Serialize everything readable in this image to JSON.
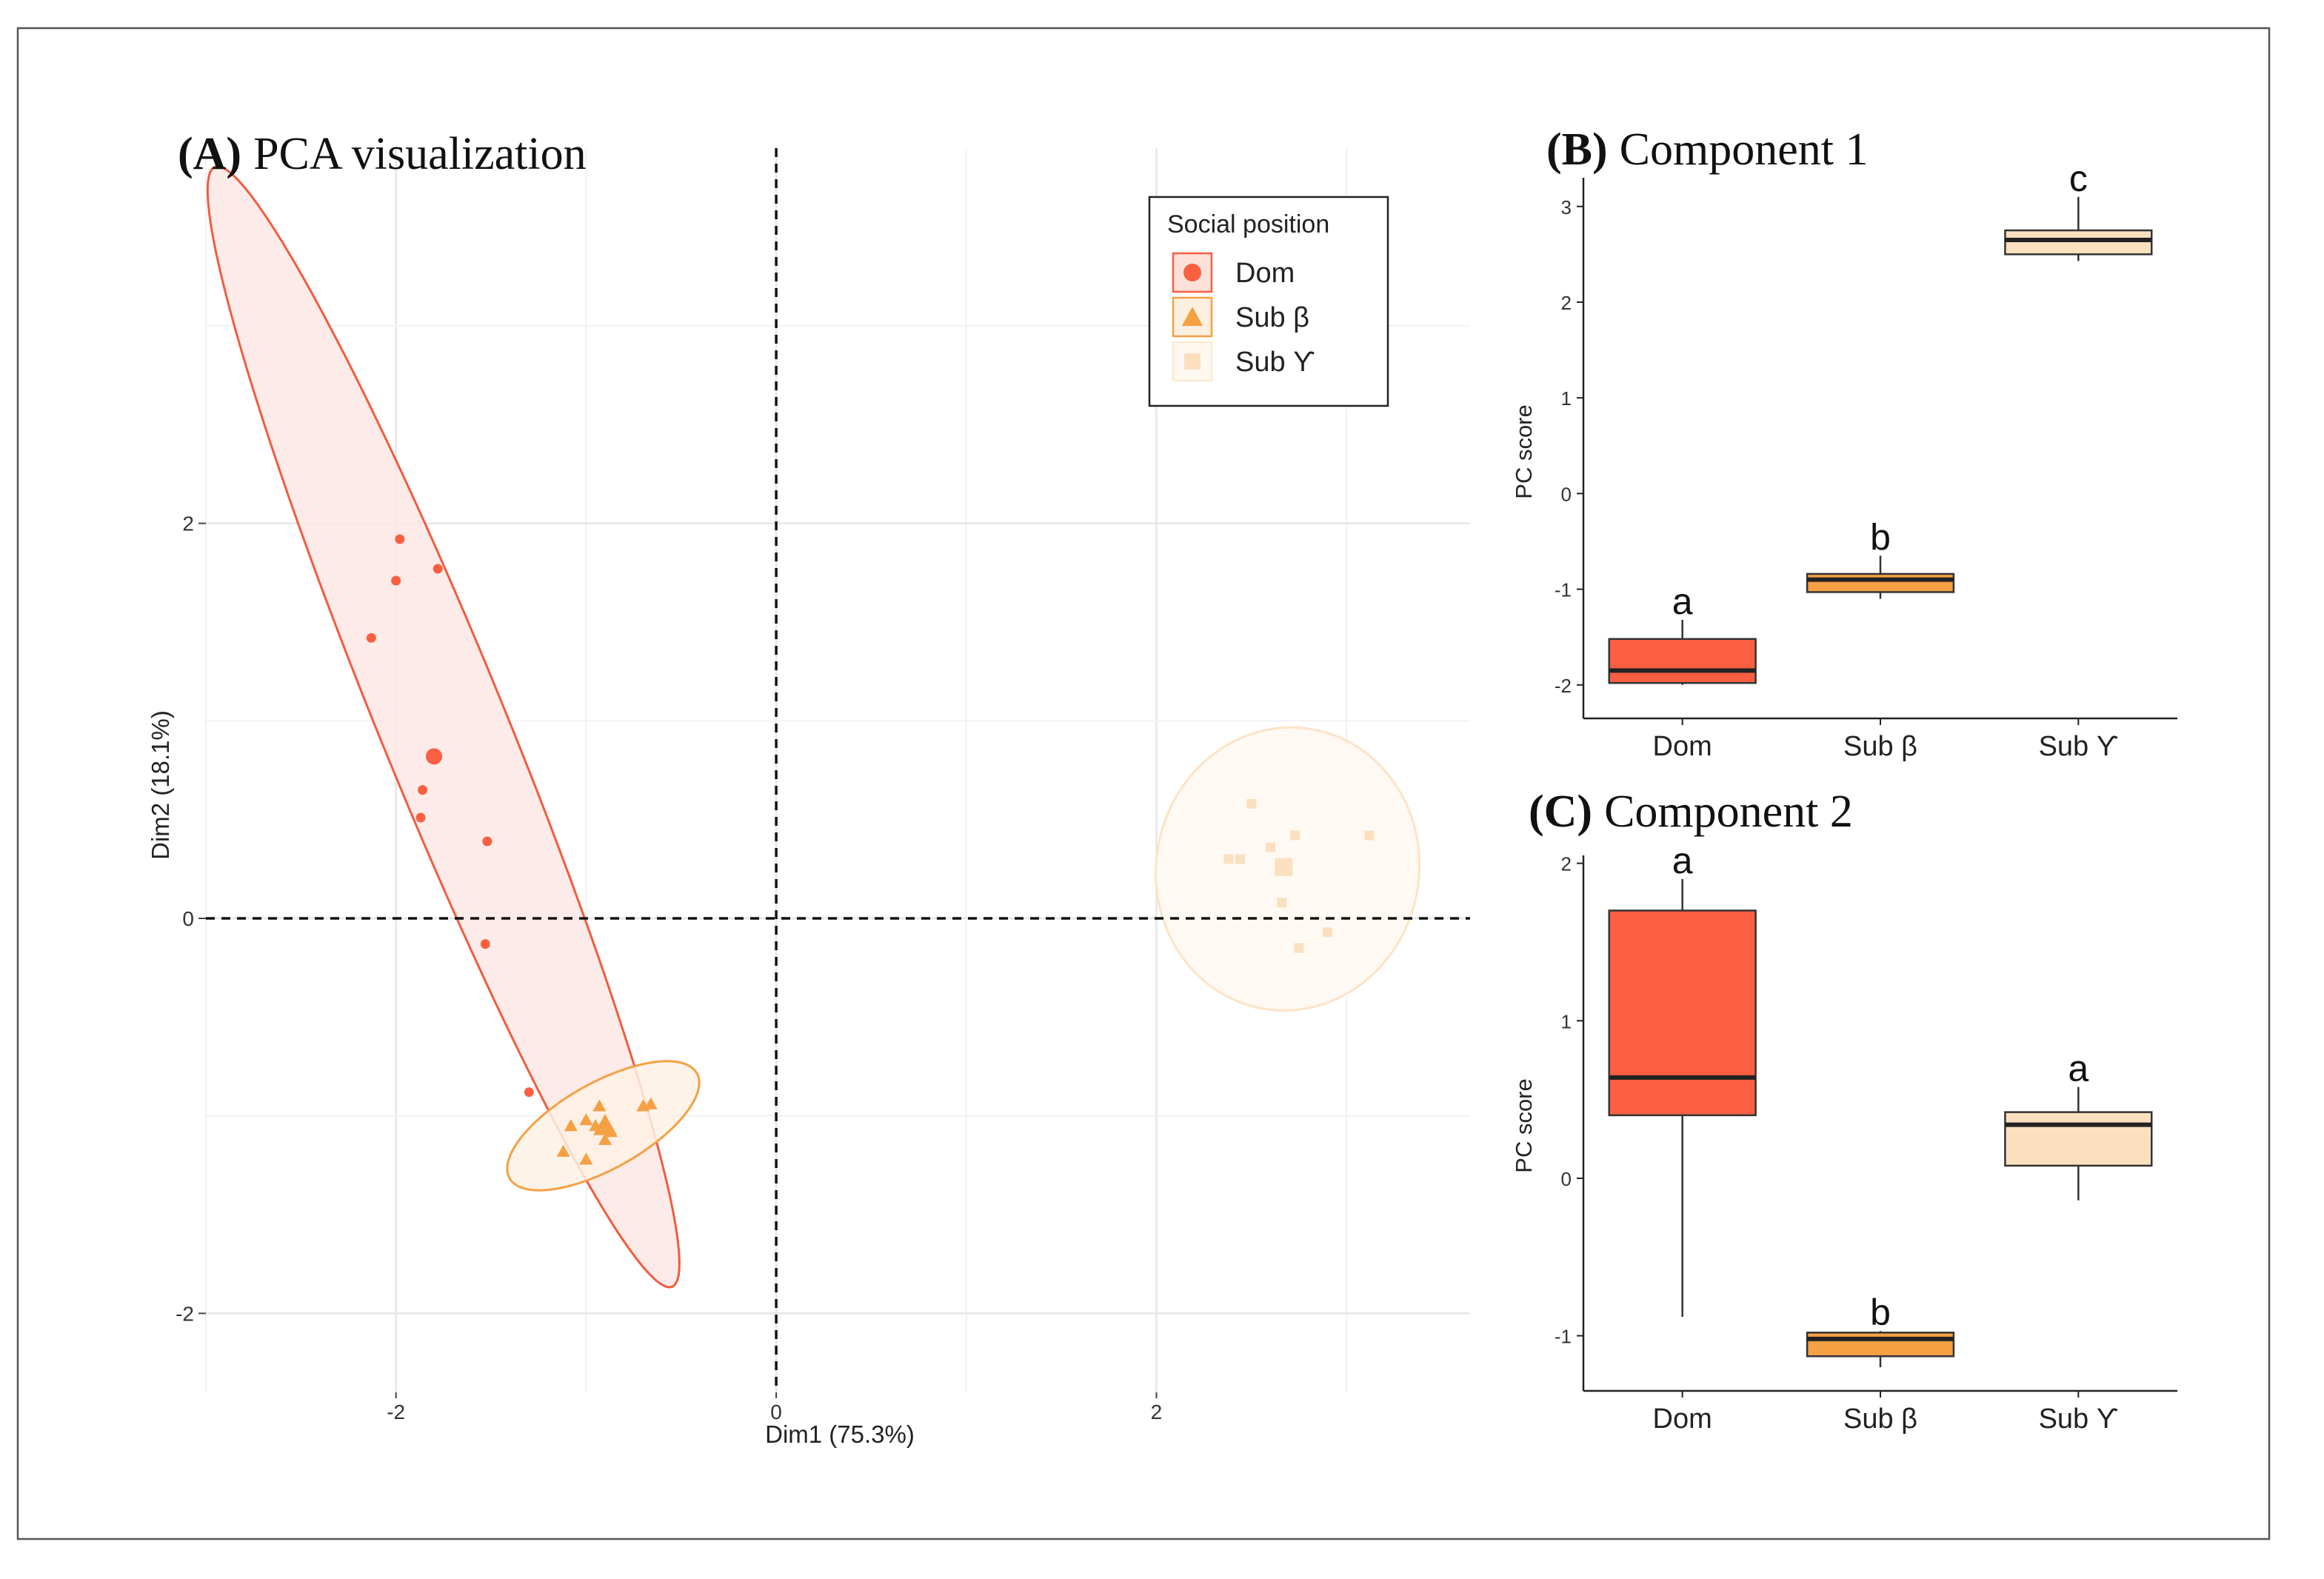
{
  "panel_a": {
    "title_bold": "(A)",
    "title_rest": "PCA visualization",
    "xlabel": "Dim1 (75.3%)",
    "ylabel": "Dim2 (18.1%)",
    "x_ticks": [
      {
        "v": -2,
        "label": "-2"
      },
      {
        "v": 0,
        "label": "0"
      },
      {
        "v": 2,
        "label": "2"
      }
    ],
    "y_ticks": [
      {
        "v": -2,
        "label": "-2"
      },
      {
        "v": 0,
        "label": "0"
      },
      {
        "v": 2,
        "label": "2"
      }
    ],
    "legend": {
      "title": "Social position",
      "items": [
        {
          "label": "Dom",
          "shape": "circle",
          "color": "#fa5f41"
        },
        {
          "label": "Sub β",
          "shape": "triangle",
          "color": "#f5a043"
        },
        {
          "label": "Sub ϒ",
          "shape": "square",
          "color": "#fbe0bf"
        }
      ]
    }
  },
  "panel_b": {
    "title_bold": "(B)",
    "title_rest": "Component 1",
    "ylabel": "PC score",
    "categories": [
      "Dom",
      "Sub β",
      "Sub ϒ"
    ],
    "y_ticks": [
      "3",
      "2",
      "1",
      "0",
      "-1",
      "-2"
    ],
    "letters": [
      "a",
      "b",
      "c"
    ]
  },
  "panel_c": {
    "title_bold": "(C)",
    "title_rest": "Component 2",
    "ylabel": "PC score",
    "categories": [
      "Dom",
      "Sub β",
      "Sub ϒ"
    ],
    "y_ticks": [
      "2",
      "1",
      "0",
      "-1"
    ],
    "letters": [
      "a",
      "b",
      "a"
    ]
  },
  "chart_data": [
    {
      "type": "scatter",
      "title": "(A) PCA visualization",
      "xlabel": "Dim1 (75.3%)",
      "ylabel": "Dim2 (18.1%)",
      "xlim": [
        -3.0,
        3.65
      ],
      "ylim": [
        -2.4,
        3.9
      ],
      "grid": true,
      "legend_position": "top-right",
      "reference_lines": {
        "x": 0,
        "y": 0,
        "style": "dashed"
      },
      "series": [
        {
          "name": "Dom",
          "marker": "circle",
          "color": "#fa5f41",
          "points": [
            [
              -1.98,
              1.92
            ],
            [
              -2.0,
              1.71
            ],
            [
              -1.78,
              1.77
            ],
            [
              -2.13,
              1.42
            ],
            [
              -1.86,
              0.65
            ],
            [
              -1.87,
              0.51
            ],
            [
              -1.52,
              0.39
            ],
            [
              -1.53,
              -0.13
            ],
            [
              -1.3,
              -0.88
            ]
          ],
          "centroid": [
            -1.8,
            0.82
          ],
          "ellipse": {
            "center": [
              -1.75,
              0.97
            ],
            "semi_axes": [
              3.08,
              0.33
            ],
            "angle_deg": -67.0
          }
        },
        {
          "name": "Sub β",
          "marker": "triangle",
          "color": "#f5a043",
          "points": [
            [
              -0.93,
              -0.95
            ],
            [
              -1.0,
              -1.02
            ],
            [
              -1.08,
              -1.05
            ],
            [
              -0.95,
              -1.05
            ],
            [
              -0.87,
              -1.08
            ],
            [
              -0.9,
              -1.12
            ],
            [
              -1.12,
              -1.18
            ],
            [
              -1.0,
              -1.22
            ],
            [
              -0.7,
              -0.95
            ],
            [
              -0.66,
              -0.94
            ]
          ],
          "centroid": [
            -0.9,
            -1.05
          ],
          "ellipse": {
            "center": [
              -0.91,
              -1.05
            ],
            "semi_axes": [
              0.56,
              0.22
            ],
            "angle_deg": 28.0
          }
        },
        {
          "name": "Sub ϒ",
          "marker": "square",
          "color": "#fbe0bf",
          "points": [
            [
              2.5,
              0.58
            ],
            [
              2.44,
              0.3
            ],
            [
              2.38,
              0.3
            ],
            [
              2.6,
              0.36
            ],
            [
              2.73,
              0.42
            ],
            [
              3.12,
              0.42
            ],
            [
              2.66,
              0.08
            ],
            [
              2.9,
              -0.07
            ],
            [
              2.75,
              -0.15
            ]
          ],
          "centroid": [
            2.67,
            0.26
          ],
          "ellipse": {
            "center": [
              2.69,
              0.25
            ],
            "semi_axes": [
              0.69,
              0.72
            ],
            "angle_deg": -20.0
          }
        }
      ]
    },
    {
      "type": "box",
      "title": "(B) Component 1",
      "ylabel": "PC score",
      "categories": [
        "Dom",
        "Sub β",
        "Sub ϒ"
      ],
      "ylim": [
        -2.35,
        3.3
      ],
      "series": [
        {
          "name": "Dom",
          "color": "#fa5f41",
          "whisker_low": -2.0,
          "q1": -1.98,
          "median": -1.85,
          "q3": -1.52,
          "whisker_high": -1.32
        },
        {
          "name": "Sub β",
          "color": "#f5a043",
          "whisker_low": -1.1,
          "q1": -1.03,
          "median": -0.9,
          "q3": -0.84,
          "whisker_high": -0.65
        },
        {
          "name": "Sub ϒ",
          "color": "#fbe0bf",
          "whisker_low": 2.43,
          "q1": 2.5,
          "median": 2.65,
          "q3": 2.75,
          "whisker_high": 3.1
        }
      ],
      "significance_letters": [
        "a",
        "b",
        "c"
      ]
    },
    {
      "type": "box",
      "title": "(C) Component 2",
      "ylabel": "PC score",
      "categories": [
        "Dom",
        "Sub β",
        "Sub ϒ"
      ],
      "ylim": [
        -1.35,
        2.05
      ],
      "series": [
        {
          "name": "Dom",
          "color": "#fa5f41",
          "whisker_low": -0.88,
          "q1": 0.4,
          "median": 0.64,
          "q3": 1.7,
          "whisker_high": 1.9
        },
        {
          "name": "Sub β",
          "color": "#f5a043",
          "whisker_low": -1.2,
          "q1": -1.13,
          "median": -1.02,
          "q3": -0.98,
          "whisker_high": -0.97
        },
        {
          "name": "Sub ϒ",
          "color": "#fbe0bf",
          "whisker_low": -0.14,
          "q1": 0.08,
          "median": 0.34,
          "q3": 0.42,
          "whisker_high": 0.58
        }
      ],
      "significance_letters": [
        "a",
        "b",
        "a"
      ]
    }
  ]
}
